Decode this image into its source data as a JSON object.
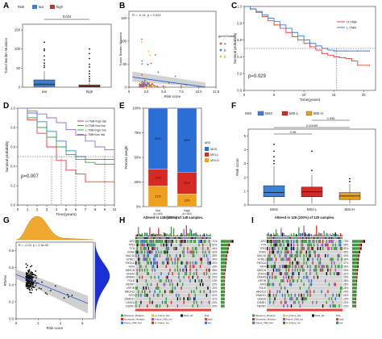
{
  "panel_letters": {
    "a": "A",
    "b": "B",
    "c": "C",
    "d": "D",
    "e": "E",
    "f": "F",
    "g": "G",
    "h": "H",
    "i": "I"
  },
  "chart_data": [
    {
      "id": "A",
      "type": "box",
      "legend_title": "Risk",
      "legend": [
        "low",
        "high"
      ],
      "colors": {
        "low": "#3c7fd6",
        "high": "#b23a3a"
      },
      "ylabel": "Tumor Burden Mutation",
      "categories": [
        "low",
        "high"
      ],
      "pvalue": "0.024",
      "yticks": [
        "0",
        "50",
        "100",
        "150"
      ],
      "ylim": [
        0,
        165
      ],
      "boxes": [
        {
          "name": "low",
          "q1": 2,
          "median": 8,
          "q3": 19,
          "whisker_low": 0,
          "whisker_high": 42,
          "outliers": [
            52,
            57,
            63,
            71,
            82,
            96,
            100,
            118
          ]
        },
        {
          "name": "high",
          "q1": 1,
          "median": 2,
          "q3": 6,
          "whisker_low": 0,
          "whisker_high": 12,
          "outliers": [
            16,
            22,
            28,
            35,
            42,
            53,
            60,
            75,
            88,
            100
          ]
        }
      ]
    },
    {
      "id": "B",
      "type": "scatter",
      "ylabel": "Tumor Burden Mutation",
      "xlabel": "Risk score",
      "annotation": "R = -0.14, p = 0.024",
      "legend_title": "geneCluster",
      "legend": [
        "A",
        "B",
        "C"
      ],
      "colors": {
        "A": "#e74c3c",
        "B": "#2e86c1",
        "C": "#f1c40f"
      },
      "xticks": [
        "0",
        "2.5",
        "5.0",
        "7.5",
        "10.0",
        "12.5"
      ],
      "yticks": [
        "0",
        "50",
        "100",
        "150"
      ],
      "xlim": [
        0,
        12.5
      ],
      "ylim": [
        0,
        165
      ],
      "fit": {
        "x": [
          0.5,
          11
        ],
        "y": [
          22,
          0
        ]
      }
    },
    {
      "id": "C",
      "type": "line",
      "title": "",
      "xlabel": "Time(years)",
      "ylabel": "Survival probability",
      "legend": [
        "H-TMB",
        "L-TMB"
      ],
      "colors": {
        "H-TMB": "#e8403a",
        "L-TMB": "#3b7fd6"
      },
      "pvalue": "p=0.029",
      "xticks": [
        "0",
        "5",
        "10",
        "15",
        "20"
      ],
      "yticks": [
        "0.0",
        "0.2",
        "0.4",
        "0.6",
        "0.8",
        "1.0"
      ],
      "xlim": [
        0,
        22
      ],
      "ylim": [
        0,
        1
      ],
      "series": [
        {
          "name": "H-TMB",
          "x": [
            0,
            1,
            2,
            3,
            4,
            5,
            6,
            7,
            8,
            9,
            10,
            11,
            12,
            13,
            14,
            15,
            16,
            17,
            18,
            19,
            20,
            21
          ],
          "y": [
            1,
            0.97,
            0.93,
            0.88,
            0.83,
            0.78,
            0.74,
            0.69,
            0.64,
            0.6,
            0.56,
            0.52,
            0.48,
            0.44,
            0.42,
            0.4,
            0.39,
            0.38,
            0.35,
            0.3,
            0.3,
            0.3
          ]
        },
        {
          "name": "L-TMB",
          "x": [
            0,
            1,
            2,
            3,
            4,
            5,
            6,
            7,
            8,
            9,
            10,
            11,
            12,
            13,
            14,
            15,
            16,
            17,
            18,
            19,
            20,
            21
          ],
          "y": [
            1,
            0.97,
            0.94,
            0.9,
            0.86,
            0.82,
            0.78,
            0.74,
            0.69,
            0.65,
            0.6,
            0.56,
            0.53,
            0.5,
            0.48,
            0.47,
            0.47,
            0.47,
            0.47,
            0.47,
            0.47,
            0.47
          ]
        }
      ]
    },
    {
      "id": "D",
      "type": "line",
      "xlabel": "Time(years)",
      "ylabel": "Survival probability",
      "legend": [
        "H-TMB+high risk",
        "H-TMB+low risk",
        "L-TMB+high risk",
        "L-TMB+low risk"
      ],
      "colors": {
        "H-TMB+high risk": "#e8403a",
        "H-TMB+low risk": "#3b7fd6",
        "L-TMB+high risk": "#3aa35a",
        "L-TMB+low risk": "#9b6ad6"
      },
      "pvalue": "p=0.007",
      "xticks": [
        "0",
        "1",
        "2",
        "3",
        "4",
        "5",
        "6",
        "7",
        "8",
        "9",
        "10"
      ],
      "yticks": [
        "0.0",
        "0.2",
        "0.4",
        "0.6",
        "0.8",
        "1.0"
      ],
      "xlim": [
        0,
        10
      ],
      "ylim": [
        0,
        1
      ],
      "series": [
        {
          "name": "H-TMB+high risk",
          "x": [
            0,
            1,
            2,
            3,
            4,
            5,
            6,
            7,
            8,
            9,
            10
          ],
          "y": [
            1,
            0.88,
            0.74,
            0.6,
            0.46,
            0.36,
            0.32,
            0.24,
            0.24,
            0.24,
            0.24
          ]
        },
        {
          "name": "H-TMB+low risk",
          "x": [
            0,
            1,
            2,
            3,
            4,
            5,
            6,
            7,
            8,
            9,
            10
          ],
          "y": [
            1,
            0.95,
            0.86,
            0.76,
            0.66,
            0.56,
            0.5,
            0.47,
            0.47,
            0.47,
            0.47
          ]
        },
        {
          "name": "L-TMB+high risk",
          "x": [
            0,
            1,
            2,
            3,
            4,
            5,
            6,
            7,
            8,
            9,
            10
          ],
          "y": [
            1,
            0.9,
            0.8,
            0.7,
            0.6,
            0.52,
            0.47,
            0.44,
            0.42,
            0.42,
            0.42
          ]
        },
        {
          "name": "L-TMB+low risk",
          "x": [
            0,
            1,
            2,
            3,
            4,
            5,
            6,
            7,
            8,
            9,
            10
          ],
          "y": [
            1,
            0.97,
            0.94,
            0.9,
            0.85,
            0.78,
            0.72,
            0.66,
            0.6,
            0.57,
            0.55
          ]
        }
      ]
    },
    {
      "id": "E",
      "type": "bar",
      "stacked": true,
      "ylabel": "Percent weight",
      "xlabel": "riskScore",
      "categories": [
        "low",
        "high"
      ],
      "category_subs": [
        "(n=160)",
        "(n=160)"
      ],
      "legend_title": "MSI",
      "legend": [
        "MSS",
        "MSI-L",
        "MSI-H"
      ],
      "colors": {
        "MSS": "#2b6fd6",
        "MSI-L": "#d62a24",
        "MSI-H": "#f0a020"
      },
      "yticks": [
        "0%",
        "25%",
        "50%",
        "75%",
        "100%"
      ],
      "series": [
        {
          "name": "MSI-H",
          "values": [
            0.21,
            0.13
          ],
          "labels": [
            "21%",
            "13%"
          ]
        },
        {
          "name": "MSI-L",
          "values": [
            0.17,
            0.22
          ],
          "labels": [
            "17%",
            "22%"
          ]
        },
        {
          "name": "MSS",
          "values": [
            0.62,
            0.65
          ],
          "labels": [
            "62%",
            "65%"
          ]
        }
      ]
    },
    {
      "id": "F",
      "type": "box",
      "legend_title": "MSI",
      "legend": [
        "MSS",
        "MSI-L",
        "MSI-H"
      ],
      "colors": {
        "MSS": "#3b7fd6",
        "MSI-L": "#d62a24",
        "MSI-H": "#e8a020"
      },
      "ylabel": "Risk score",
      "categories": [
        "MSS",
        "MSI-L",
        "MSI-H"
      ],
      "pvalues": [
        "0.48",
        "0.00059",
        "0.536"
      ],
      "yticks": [
        "0",
        "1",
        "2",
        "3",
        "4",
        "5"
      ],
      "ylim": [
        0,
        5.5
      ],
      "boxes": [
        {
          "name": "MSS",
          "q1": 0.6,
          "median": 0.9,
          "q3": 1.4,
          "whisker_low": 0.1,
          "whisker_high": 2.8,
          "outliers": [
            3.0,
            3.2,
            3.5,
            3.9,
            4.4
          ]
        },
        {
          "name": "MSI-L",
          "q1": 0.6,
          "median": 0.95,
          "q3": 1.3,
          "whisker_low": 0.1,
          "whisker_high": 2.2,
          "outliers": [
            2.5,
            3.9
          ]
        },
        {
          "name": "MSI-H",
          "q1": 0.4,
          "median": 0.65,
          "q3": 0.9,
          "whisker_low": 0.1,
          "whisker_high": 1.5,
          "outliers": [
            1.7,
            1.9
          ]
        }
      ]
    },
    {
      "id": "G",
      "type": "scatter",
      "ylabel": "RNAss",
      "xlabel": "Risk score",
      "annotation": "R = -0.23, p = 2.3e-05",
      "xticks": [
        "0",
        "2",
        "4",
        "6"
      ],
      "yticks": [
        "0.0",
        "0.2",
        "0.4",
        "0.6",
        "0.8"
      ],
      "xlim": [
        0,
        7
      ],
      "ylim": [
        0,
        0.9
      ],
      "fit": {
        "x": [
          0,
          6.5
        ],
        "y": [
          0.52,
          0.18
        ]
      }
    },
    {
      "id": "H",
      "type": "heatmap",
      "title": "Altered in 148 (100%) of 148 samples.",
      "genes": [
        "APC",
        "TP53",
        "TTN",
        "KRAS",
        "MUC16",
        "SYNE1",
        "PIK3CA",
        "FAT4",
        "OBSCN",
        "ZFHX4",
        "DNAH5",
        "POLE",
        "FBXW7",
        "LRP1B",
        "ABCA13",
        "FAT3",
        "DNAH11",
        "USH2A",
        "CSMD1"
      ],
      "percents": [
        "71%",
        "51%",
        "44%",
        "42%",
        "35%",
        "34%",
        "32%",
        "29%",
        "28%",
        "24%",
        "24%",
        "22%",
        "22%",
        "22%",
        "22%",
        "21%",
        "21%",
        "20%",
        "20%"
      ],
      "legend": [
        "Missense_Mutation",
        "Nonsense_Mutation",
        "Frame_Shift_Del",
        "In_Frame_Del",
        "Frame_Shift_Ins",
        "In_Frame_Ins",
        "Multi_Hit"
      ],
      "risk_legend_title": "Risk",
      "risk_legend": [
        "high",
        "low"
      ],
      "colors": {
        "Missense_Mutation": "#3a9a3a",
        "Nonsense_Mutation": "#d62a24",
        "Frame_Shift_Del": "#2b6fd6",
        "In_Frame_Del": "#f0c020",
        "Frame_Shift_Ins": "#9b59b6",
        "In_Frame_Ins": "#8b4513",
        "Multi_Hit": "#000000",
        "risk_high": "#e8403a",
        "risk_low": "#2b6fd6"
      }
    },
    {
      "id": "I",
      "type": "heatmap",
      "title": "Altered in 128 (100%) of 128 samples.",
      "genes": [
        "APC",
        "TTN",
        "TP53",
        "KRAS",
        "MUC16",
        "SYNE1",
        "PIK3CA",
        "FAT4",
        "OBSCN",
        "ZFHX4",
        "DNAH5",
        "LRP1B",
        "FAT3",
        "POLE",
        "ABCA13",
        "DNAH11",
        "USH2A",
        "CSMD1",
        "FBXW7"
      ],
      "percents": [
        "73%",
        "55%",
        "53%",
        "45%",
        "40%",
        "38%",
        "37%",
        "36%",
        "33%",
        "31%",
        "29%",
        "28%",
        "26%",
        "25%",
        "24%",
        "24%",
        "23%",
        "22%",
        "22%"
      ],
      "legend": [
        "Missense_Mutation",
        "Nonsense_Mutation",
        "Frame_Shift_Del",
        "In_Frame_Del",
        "Frame_Shift_Ins",
        "In_Frame_Ins",
        "Multi_Hit"
      ],
      "risk_legend_title": "Risk",
      "risk_legend": [
        "high",
        "low"
      ],
      "colors": {
        "Missense_Mutation": "#3a9a3a",
        "Nonsense_Mutation": "#d62a24",
        "Frame_Shift_Del": "#2b6fd6",
        "In_Frame_Del": "#f0c020",
        "Frame_Shift_Ins": "#9b59b6",
        "In_Frame_Ins": "#8b4513",
        "Multi_Hit": "#000000",
        "risk_high": "#e8403a",
        "risk_low": "#2b6fd6"
      }
    }
  ]
}
